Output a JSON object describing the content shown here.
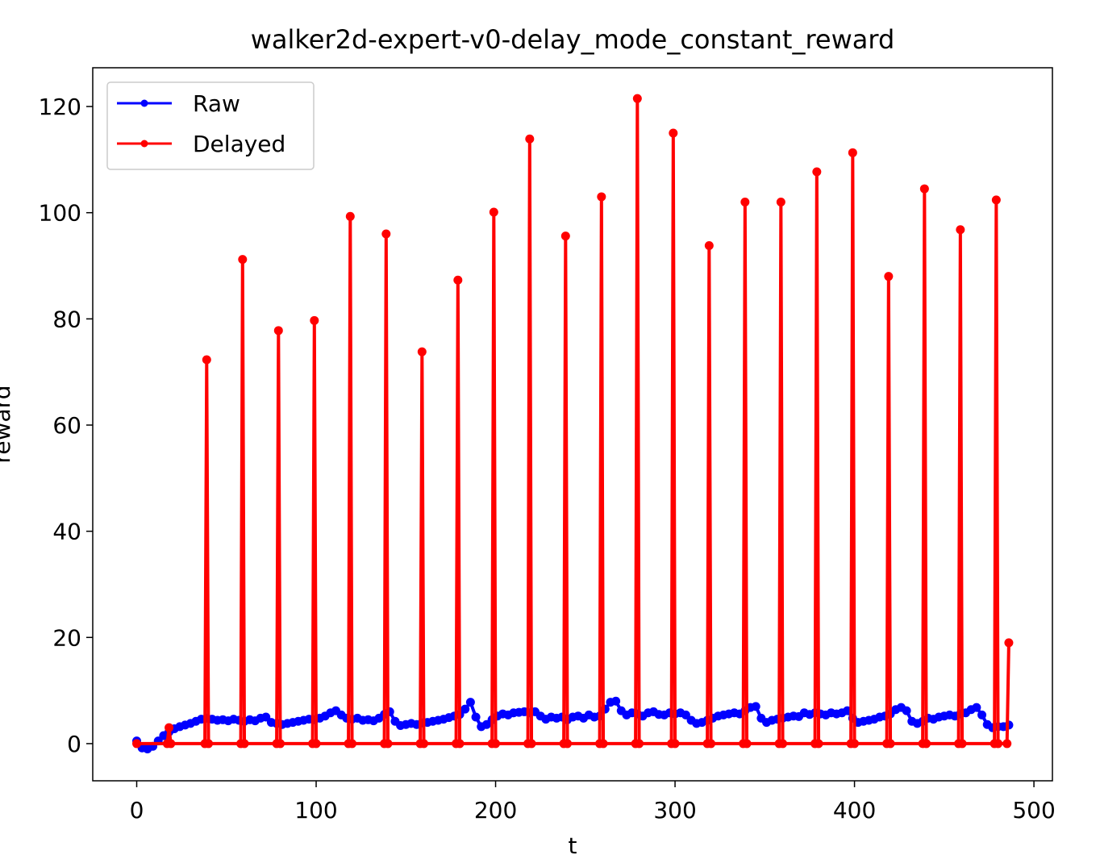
{
  "chart_data": {
    "type": "line",
    "title": "walker2d-expert-v0-delay_mode_constant_reward",
    "xlabel": "t",
    "ylabel": "reward",
    "xlim": [
      -24.5,
      510.3
    ],
    "ylim": [
      -7,
      127.3
    ],
    "xticks": [
      0,
      100,
      200,
      300,
      400,
      500
    ],
    "yticks": [
      0,
      20,
      40,
      60,
      80,
      100,
      120
    ],
    "legend": "upper left",
    "series": [
      {
        "name": "Raw",
        "color": "#0000ff",
        "x": [
          0,
          3,
          6,
          9,
          12,
          15,
          18,
          21,
          24,
          27,
          30,
          33,
          36,
          39,
          42,
          45,
          48,
          51,
          54,
          57,
          60,
          63,
          66,
          69,
          72,
          75,
          78,
          81,
          84,
          87,
          90,
          93,
          96,
          99,
          102,
          105,
          108,
          111,
          114,
          117,
          120,
          123,
          126,
          129,
          132,
          135,
          138,
          141,
          144,
          147,
          150,
          153,
          156,
          159,
          162,
          165,
          168,
          171,
          174,
          177,
          180,
          183,
          186,
          189,
          192,
          195,
          198,
          201,
          204,
          207,
          210,
          213,
          216,
          219,
          222,
          225,
          228,
          231,
          234,
          237,
          240,
          243,
          246,
          249,
          252,
          255,
          258,
          261,
          264,
          267,
          270,
          273,
          276,
          279,
          282,
          285,
          288,
          291,
          294,
          297,
          300,
          303,
          306,
          309,
          312,
          315,
          318,
          321,
          324,
          327,
          330,
          333,
          336,
          339,
          342,
          345,
          348,
          351,
          354,
          357,
          360,
          363,
          366,
          369,
          372,
          375,
          378,
          381,
          384,
          387,
          390,
          393,
          396,
          399,
          402,
          405,
          408,
          411,
          414,
          417,
          420,
          423,
          426,
          429,
          432,
          435,
          438,
          441,
          444,
          447,
          450,
          453,
          456,
          459,
          462,
          465,
          468,
          471,
          474,
          477,
          480,
          483,
          486
        ],
        "values": [
          0.5,
          -0.8,
          -1,
          -0.5,
          0.5,
          1.5,
          2.2,
          2.8,
          3.2,
          3.5,
          3.8,
          4.2,
          4.6,
          4.8,
          4.6,
          4.4,
          4.5,
          4.3,
          4.6,
          4.4,
          4.2,
          4.5,
          4.3,
          4.8,
          5,
          4,
          3.8,
          3.6,
          3.8,
          4,
          4.2,
          4.4,
          4.6,
          4.5,
          4.8,
          5.2,
          5.8,
          6.2,
          5.4,
          4.8,
          4.6,
          4.8,
          4.4,
          4.5,
          4.3,
          4.8,
          5.5,
          6,
          4.2,
          3.4,
          3.6,
          3.8,
          3.6,
          3.9,
          4,
          4.2,
          4.4,
          4.6,
          4.9,
          5.2,
          5.5,
          6.5,
          7.8,
          5,
          3.2,
          3.6,
          4.5,
          5.2,
          5.6,
          5.4,
          5.8,
          5.9,
          6,
          5.8,
          6,
          5.2,
          4.6,
          5,
          4.8,
          5,
          4.5,
          5,
          5.2,
          4.8,
          5.4,
          5,
          5.2,
          6.5,
          7.8,
          8,
          6.2,
          5.4,
          5.8,
          5.6,
          5.2,
          5.8,
          6,
          5.5,
          5.4,
          5.8,
          5.6,
          5.8,
          5.4,
          4.4,
          3.8,
          4,
          4.4,
          4.8,
          5.2,
          5.4,
          5.6,
          5.8,
          5.6,
          6.2,
          6.8,
          7,
          4.8,
          4,
          4.4,
          4.6,
          4.8,
          5,
          5.2,
          5.1,
          5.8,
          5.5,
          5.8,
          5.6,
          5.4,
          5.8,
          5.6,
          5.8,
          6.2,
          4.8,
          4,
          4.2,
          4.4,
          4.6,
          5,
          5.2,
          5.6,
          6.4,
          6.8,
          6.2,
          4.2,
          3.8,
          4.2,
          4.8,
          4.6,
          5,
          5.2,
          5.4,
          5.2,
          5.6,
          5.8,
          6.4,
          6.8,
          5.4,
          3.6,
          3,
          3.2,
          3.2,
          3.5
        ]
      },
      {
        "name": "Delayed",
        "color": "#ff0000",
        "x": [
          0,
          17,
          18,
          19,
          38,
          39,
          40,
          58,
          59,
          60,
          78,
          79,
          80,
          98,
          99,
          100,
          118,
          119,
          120,
          138,
          139,
          140,
          158,
          159,
          160,
          178,
          179,
          180,
          198,
          199,
          200,
          218,
          219,
          220,
          238,
          239,
          240,
          258,
          259,
          260,
          278,
          279,
          280,
          298,
          299,
          300,
          318,
          319,
          320,
          338,
          339,
          340,
          358,
          359,
          360,
          378,
          379,
          380,
          398,
          399,
          400,
          418,
          419,
          420,
          438,
          439,
          440,
          458,
          459,
          460,
          478,
          479,
          480,
          485,
          486
        ],
        "values": [
          0,
          0,
          3,
          0,
          0,
          72.3,
          0,
          0,
          91.2,
          0,
          0,
          77.8,
          0,
          0,
          79.7,
          0,
          0,
          99.3,
          0,
          0,
          96,
          0,
          0,
          73.8,
          0,
          0,
          87.3,
          0,
          0,
          100.1,
          0,
          0,
          113.9,
          0,
          0,
          95.6,
          0,
          0,
          103,
          0,
          0,
          121.5,
          0,
          0,
          115,
          0,
          0,
          93.8,
          0,
          0,
          102,
          0,
          0,
          102,
          0,
          0,
          107.7,
          0,
          0,
          111.3,
          0,
          0,
          88,
          0,
          0,
          104.5,
          0,
          0,
          96.8,
          0,
          0,
          102.4,
          0,
          0,
          19
        ]
      }
    ]
  }
}
